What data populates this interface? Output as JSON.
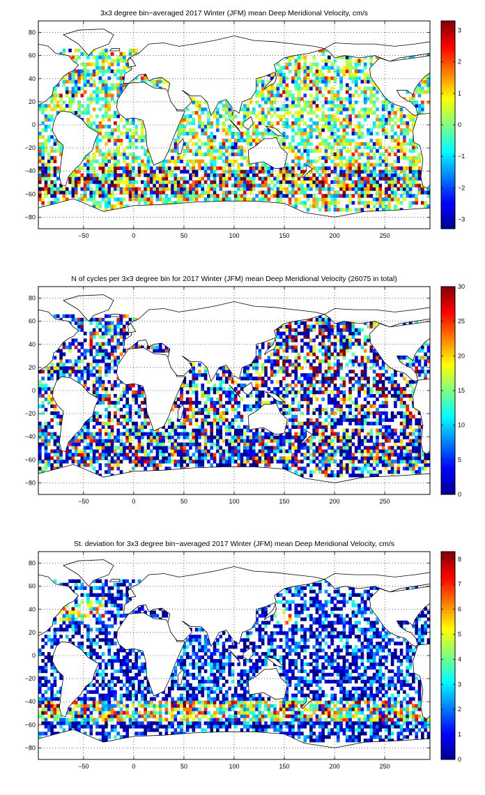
{
  "figure": {
    "panels": [
      {
        "title": "3x3 degree bin−averaged 2017 Winter (JFM) mean Deep Meridional Velocity, cm/s",
        "colorbar": {
          "vmin": -3.3,
          "vmax": 3.3,
          "ticks": [
            "3",
            "2",
            "1",
            "0",
            "−1",
            "−2",
            "−3"
          ],
          "tick_values": [
            3,
            2,
            1,
            0,
            -1,
            -2,
            -3
          ],
          "colormap": "jet"
        }
      },
      {
        "title": "N of cycles per 3x3 degree bin for 2017 Winter (JFM) mean Deep Meridional Velocity (26075 in total)",
        "colorbar": {
          "vmin": 0,
          "vmax": 30,
          "ticks": [
            "30",
            "25",
            "20",
            "15",
            "10",
            "5",
            "0"
          ],
          "tick_values": [
            30,
            25,
            20,
            15,
            10,
            5,
            0
          ],
          "colormap": "jet"
        }
      },
      {
        "title": "St. deviation for 3x3 degree bin−averaged 2017 Winter (JFM) mean Deep Meridional Velocity, cm/s",
        "colorbar": {
          "vmin": 0,
          "vmax": 8.3,
          "ticks": [
            "8",
            "7",
            "6",
            "5",
            "4",
            "3",
            "2",
            "1",
            "0"
          ],
          "tick_values": [
            8,
            7,
            6,
            5,
            4,
            3,
            2,
            1,
            0
          ],
          "colormap": "jet"
        }
      }
    ],
    "x_ticks": [
      "−50",
      "0",
      "50",
      "100",
      "150",
      "200",
      "250"
    ],
    "y_ticks": [
      "80",
      "60",
      "40",
      "20",
      "0",
      "−20",
      "−40",
      "−60",
      "−80"
    ]
  },
  "chart_data": [
    {
      "type": "heatmap",
      "title": "3x3 degree bin−averaged 2017 Winter (JFM) mean Deep Meridional Velocity, cm/s",
      "xlabel": "",
      "ylabel": "",
      "xlim": [
        -95,
        295
      ],
      "ylim": [
        -90,
        90
      ],
      "x_ticks": [
        -50,
        0,
        50,
        100,
        150,
        200,
        250
      ],
      "y_ticks": [
        80,
        60,
        40,
        20,
        0,
        -20,
        -40,
        -60,
        -80
      ],
      "bin_size_deg": 3,
      "colorbar": {
        "range": [
          -3.3,
          3.3
        ],
        "colormap": "jet"
      },
      "grid": true,
      "coastlines": true
    },
    {
      "type": "heatmap",
      "title": "N of cycles per 3x3 degree bin for 2017 Winter (JFM) mean Deep Meridional Velocity (26075 in total)",
      "xlabel": "",
      "ylabel": "",
      "xlim": [
        -95,
        295
      ],
      "ylim": [
        -90,
        90
      ],
      "x_ticks": [
        -50,
        0,
        50,
        100,
        150,
        200,
        250
      ],
      "y_ticks": [
        80,
        60,
        40,
        20,
        0,
        -20,
        -40,
        -60,
        -80
      ],
      "bin_size_deg": 3,
      "total_cycles": 26075,
      "colorbar": {
        "range": [
          0,
          30
        ],
        "colormap": "jet"
      },
      "grid": true,
      "coastlines": true
    },
    {
      "type": "heatmap",
      "title": "St. deviation for 3x3 degree bin−averaged 2017 Winter (JFM) mean Deep Meridional Velocity, cm/s",
      "xlabel": "",
      "ylabel": "",
      "xlim": [
        -95,
        295
      ],
      "ylim": [
        -90,
        90
      ],
      "x_ticks": [
        -50,
        0,
        50,
        100,
        150,
        200,
        250
      ],
      "y_ticks": [
        80,
        60,
        40,
        20,
        0,
        -20,
        -40,
        -60,
        -80
      ],
      "bin_size_deg": 3,
      "colorbar": {
        "range": [
          0,
          8.3
        ],
        "colormap": "jet"
      },
      "grid": true,
      "coastlines": true
    }
  ]
}
